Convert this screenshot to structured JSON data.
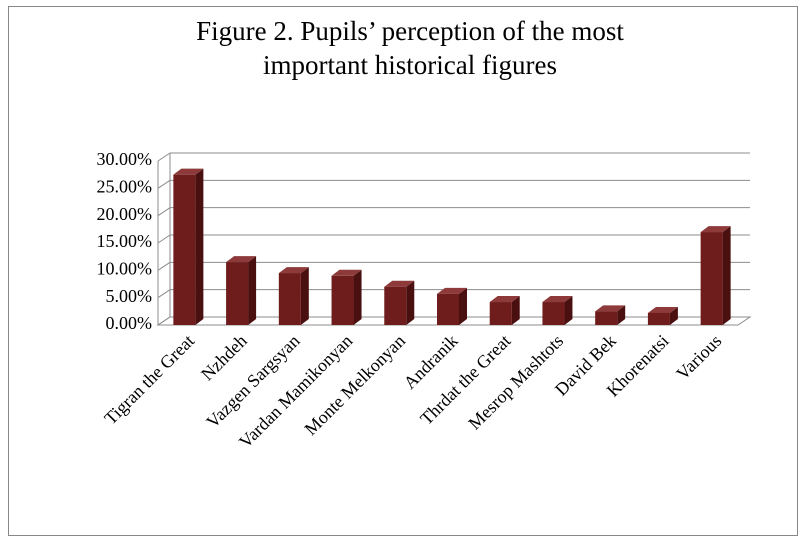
{
  "chart_data": {
    "type": "bar",
    "title": "Figure 2. Pupils’ perception of the most important historical figures",
    "categories": [
      "Tigran the Great",
      "Nzhdeh",
      "Vazgen Sargsyan",
      "Vardan Mamikonyan",
      "Monte Melkonyan",
      "Andranik",
      "Thrdat the Great",
      "Mesrop Mashtots",
      "David Bek",
      "Khorenatsi",
      "Various"
    ],
    "values": [
      27.5,
      11.5,
      9.5,
      9.0,
      7.0,
      5.7,
      4.2,
      4.2,
      2.5,
      2.2,
      17.0
    ],
    "color": "#6e1c1c",
    "ylim": [
      0,
      30
    ],
    "yticks": [
      {
        "value": 0,
        "label": "0.00%"
      },
      {
        "value": 5,
        "label": "5.00%"
      },
      {
        "value": 10,
        "label": "10.00%"
      },
      {
        "value": 15,
        "label": "15.00%"
      },
      {
        "value": 20,
        "label": "20.00%"
      },
      {
        "value": 25,
        "label": "25.00%"
      },
      {
        "value": 30,
        "label": "30.00%"
      }
    ],
    "grid": true
  }
}
